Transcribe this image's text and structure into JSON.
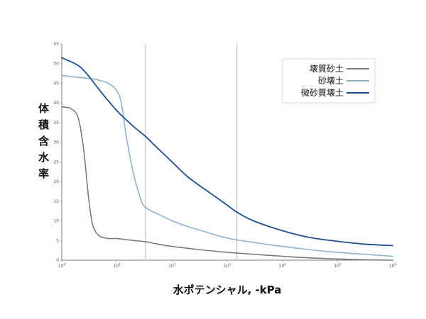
{
  "chart_data": {
    "type": "line",
    "title": "",
    "xlabel": "水ポテンシャル, -kPa",
    "ylabel": "体積含水率",
    "x_scale": "log",
    "xlim": [
      1,
      1000000
    ],
    "ylim": [
      0,
      55
    ],
    "x_ticks": [
      {
        "base": "10",
        "exp": "0"
      },
      {
        "base": "10",
        "exp": "1"
      },
      {
        "base": "10",
        "exp": "2"
      },
      {
        "base": "10",
        "exp": "3"
      },
      {
        "base": "10",
        "exp": "4"
      },
      {
        "base": "10",
        "exp": "5"
      },
      {
        "base": "10",
        "exp": "6"
      }
    ],
    "y_ticks": [
      "0",
      "5",
      "10",
      "15",
      "20",
      "25",
      "30",
      "35",
      "40",
      "45",
      "50",
      "55"
    ],
    "grid": false,
    "legend_position": "top-right",
    "reference_lines_x": [
      33,
      1500
    ],
    "series": [
      {
        "name": "壊質砂土",
        "color": "#7a7a7a",
        "points": [
          [
            1,
            39
          ],
          [
            1.5,
            38.5
          ],
          [
            2,
            36
          ],
          [
            2.5,
            28
          ],
          [
            3,
            17
          ],
          [
            3.5,
            10
          ],
          [
            4,
            7.5
          ],
          [
            5,
            6
          ],
          [
            7,
            5.5
          ],
          [
            10,
            5.5
          ],
          [
            20,
            5
          ],
          [
            33,
            4.7
          ],
          [
            50,
            4.2
          ],
          [
            100,
            3.5
          ],
          [
            300,
            2.7
          ],
          [
            1000,
            2
          ],
          [
            3000,
            1.5
          ],
          [
            10000,
            1
          ],
          [
            30000,
            0.6
          ],
          [
            100000,
            0.3
          ],
          [
            300000,
            0.1
          ],
          [
            1000000,
            0
          ]
        ]
      },
      {
        "name": "砂壊土",
        "color": "#8fb3cf",
        "points": [
          [
            1,
            47
          ],
          [
            2,
            46.5
          ],
          [
            4,
            46
          ],
          [
            7,
            45
          ],
          [
            10,
            43
          ],
          [
            12,
            40
          ],
          [
            15,
            31
          ],
          [
            20,
            22
          ],
          [
            25,
            17
          ],
          [
            30,
            14
          ],
          [
            40,
            12.7
          ],
          [
            60,
            11.5
          ],
          [
            100,
            10
          ],
          [
            200,
            8.5
          ],
          [
            500,
            6.8
          ],
          [
            1000,
            5.6
          ],
          [
            3000,
            4.5
          ],
          [
            10000,
            3.5
          ],
          [
            30000,
            2.7
          ],
          [
            100000,
            2
          ],
          [
            300000,
            1.5
          ],
          [
            1000000,
            1
          ]
        ]
      },
      {
        "name": "微砂質壊土",
        "color": "#1f4e8c",
        "points": [
          [
            1,
            51.5
          ],
          [
            2,
            49.5
          ],
          [
            3,
            47
          ],
          [
            5,
            43
          ],
          [
            10,
            38
          ],
          [
            20,
            34
          ],
          [
            33,
            31.5
          ],
          [
            50,
            29
          ],
          [
            100,
            25
          ],
          [
            200,
            21
          ],
          [
            500,
            17
          ],
          [
            1000,
            14
          ],
          [
            1500,
            12.2
          ],
          [
            3000,
            10
          ],
          [
            10000,
            7.5
          ],
          [
            30000,
            5.8
          ],
          [
            100000,
            4.8
          ],
          [
            300000,
            4.1
          ],
          [
            1000000,
            3.7
          ]
        ]
      }
    ]
  }
}
